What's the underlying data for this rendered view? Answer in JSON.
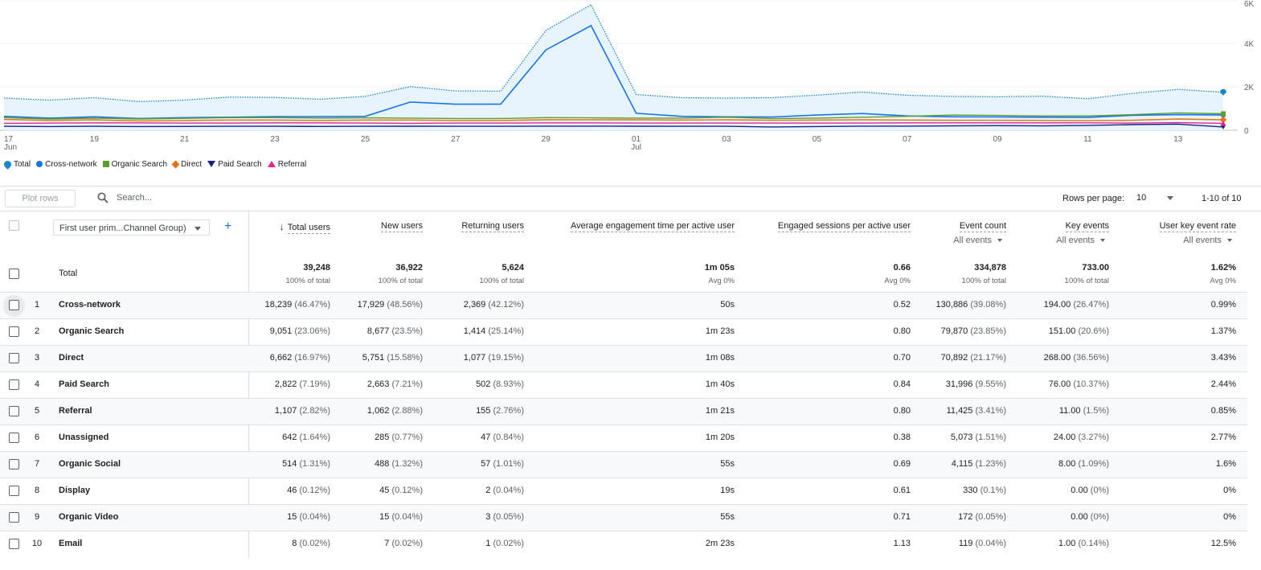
{
  "chart_data": {
    "type": "line",
    "x": [
      "17 Jun",
      "18 Jun",
      "19 Jun",
      "20 Jun",
      "21 Jun",
      "22 Jun",
      "23 Jun",
      "24 Jun",
      "25 Jun",
      "26 Jun",
      "27 Jun",
      "28 Jun",
      "29 Jun",
      "30 Jun",
      "01 Jul",
      "02 Jul",
      "03 Jul",
      "04 Jul",
      "05 Jul",
      "06 Jul",
      "07 Jul",
      "08 Jul",
      "09 Jul",
      "10 Jul",
      "11 Jul",
      "12 Jul",
      "13 Jul",
      "14 Jul"
    ],
    "xticks": [
      {
        "i": 0,
        "top": "17",
        "bottom": "Jun"
      },
      {
        "i": 2,
        "top": "19",
        "bottom": ""
      },
      {
        "i": 4,
        "top": "21",
        "bottom": ""
      },
      {
        "i": 6,
        "top": "23",
        "bottom": ""
      },
      {
        "i": 8,
        "top": "25",
        "bottom": ""
      },
      {
        "i": 10,
        "top": "27",
        "bottom": ""
      },
      {
        "i": 12,
        "top": "29",
        "bottom": ""
      },
      {
        "i": 14,
        "top": "01",
        "bottom": "Jul"
      },
      {
        "i": 16,
        "top": "03",
        "bottom": ""
      },
      {
        "i": 18,
        "top": "05",
        "bottom": ""
      },
      {
        "i": 20,
        "top": "07",
        "bottom": ""
      },
      {
        "i": 22,
        "top": "09",
        "bottom": ""
      },
      {
        "i": 24,
        "top": "11",
        "bottom": ""
      },
      {
        "i": 26,
        "top": "13",
        "bottom": ""
      }
    ],
    "yticks": [
      {
        "value": 0,
        "label": "0"
      },
      {
        "value": 2000,
        "label": "2K"
      },
      {
        "value": 4000,
        "label": "4K"
      },
      {
        "value": 6000,
        "label": "6K"
      }
    ],
    "ylim": [
      0,
      6000
    ],
    "grid": true,
    "legend_position": "bottom-left",
    "series": [
      {
        "name": "Total",
        "color": "#1a86c7",
        "style": "dotted-area",
        "values": [
          1480,
          1390,
          1500,
          1320,
          1390,
          1530,
          1510,
          1430,
          1560,
          2010,
          1810,
          1800,
          4600,
          5780,
          1650,
          1500,
          1480,
          1500,
          1620,
          1760,
          1610,
          1560,
          1540,
          1570,
          1450,
          1700,
          1880,
          1750
        ]
      },
      {
        "name": "Cross-network",
        "color": "#1a73e8",
        "style": "line",
        "values": [
          640,
          560,
          620,
          540,
          580,
          600,
          630,
          630,
          640,
          1300,
          1200,
          1200,
          3700,
          4820,
          780,
          640,
          620,
          610,
          700,
          770,
          660,
          620,
          610,
          600,
          590,
          690,
          720,
          700
        ]
      },
      {
        "name": "Organic Search",
        "color": "#5a9e2f",
        "style": "line",
        "values": [
          580,
          520,
          560,
          520,
          550,
          580,
          580,
          560,
          570,
          560,
          540,
          540,
          580,
          570,
          560,
          560,
          600,
          540,
          560,
          600,
          640,
          700,
          680,
          660,
          660,
          720,
          800,
          760
        ]
      },
      {
        "name": "Direct",
        "color": "#e8710a",
        "style": "line",
        "values": [
          500,
          450,
          480,
          430,
          450,
          470,
          470,
          450,
          470,
          470,
          450,
          450,
          480,
          480,
          480,
          470,
          480,
          460,
          470,
          480,
          470,
          460,
          460,
          450,
          440,
          460,
          520,
          480
        ]
      },
      {
        "name": "Paid Search",
        "color": "#1a237e",
        "style": "line",
        "values": [
          180,
          170,
          180,
          170,
          175,
          180,
          180,
          175,
          180,
          185,
          180,
          180,
          190,
          190,
          185,
          180,
          180,
          150,
          170,
          190,
          190,
          200,
          210,
          200,
          220,
          260,
          280,
          150
        ]
      },
      {
        "name": "Referral",
        "color": "#e52592",
        "style": "line",
        "values": [
          320,
          330,
          340,
          340,
          330,
          330,
          340,
          340,
          330,
          320,
          330,
          330,
          340,
          340,
          330,
          330,
          330,
          330,
          330,
          330,
          340,
          340,
          340,
          340,
          340,
          330,
          350,
          320
        ]
      }
    ]
  },
  "toolbar": {
    "plot_rows_label": "Plot rows",
    "search_placeholder": "Search...",
    "rows_per_page_label": "Rows per page:",
    "rows_per_page_value": "10",
    "pagination": "1-10 of 10"
  },
  "table": {
    "dimension_select": "First user prim...Channel Group)",
    "add_dimension": "+",
    "columns": [
      {
        "label": "Total users",
        "sub": "",
        "sort": "↓",
        "right": 411
      },
      {
        "label": "New users",
        "sub": "",
        "sort": "",
        "right": 526
      },
      {
        "label": "Returning users",
        "sub": "",
        "sort": "",
        "right": 652
      },
      {
        "label": "Average engagement time per active user",
        "sub": "",
        "sort": "",
        "right": 914
      },
      {
        "label": "Engaged sessions per active user",
        "sub": "",
        "sort": "",
        "right": 1133
      },
      {
        "label": "Event count",
        "sub": "All events",
        "sort": "",
        "right": 1252
      },
      {
        "label": "Key events",
        "sub": "All events",
        "sort": "",
        "right": 1380
      },
      {
        "label": "User key event rate",
        "sub": "All events",
        "sort": "",
        "right": 1538
      }
    ],
    "total": {
      "label": "Total",
      "values": [
        "39,248",
        "36,922",
        "5,624",
        "1m 05s",
        "0.66",
        "334,878",
        "733.00",
        "1.62%"
      ],
      "subs": [
        "100% of total",
        "100% of total",
        "100% of total",
        "Avg 0%",
        "Avg 0%",
        "100% of total",
        "100% of total",
        "Avg 0%"
      ]
    },
    "rows": [
      {
        "n": "1",
        "name": "Cross-network",
        "cells": [
          [
            "18,239",
            "(46.47%)"
          ],
          [
            "17,929",
            "(48.56%)"
          ],
          [
            "2,369",
            "(42.12%)"
          ],
          [
            "50s",
            ""
          ],
          [
            "0.52",
            ""
          ],
          [
            "130,886",
            "(39.08%)"
          ],
          [
            "194.00",
            "(26.47%)"
          ],
          [
            "0.99%",
            ""
          ]
        ]
      },
      {
        "n": "2",
        "name": "Organic Search",
        "cells": [
          [
            "9,051",
            "(23.06%)"
          ],
          [
            "8,677",
            "(23.5%)"
          ],
          [
            "1,414",
            "(25.14%)"
          ],
          [
            "1m 23s",
            ""
          ],
          [
            "0.80",
            ""
          ],
          [
            "79,870",
            "(23.85%)"
          ],
          [
            "151.00",
            "(20.6%)"
          ],
          [
            "1.37%",
            ""
          ]
        ]
      },
      {
        "n": "3",
        "name": "Direct",
        "cells": [
          [
            "6,662",
            "(16.97%)"
          ],
          [
            "5,751",
            "(15.58%)"
          ],
          [
            "1,077",
            "(19.15%)"
          ],
          [
            "1m 08s",
            ""
          ],
          [
            "0.70",
            ""
          ],
          [
            "70,892",
            "(21.17%)"
          ],
          [
            "268.00",
            "(36.56%)"
          ],
          [
            "3.43%",
            ""
          ]
        ]
      },
      {
        "n": "4",
        "name": "Paid Search",
        "cells": [
          [
            "2,822",
            "(7.19%)"
          ],
          [
            "2,663",
            "(7.21%)"
          ],
          [
            "502",
            "(8.93%)"
          ],
          [
            "1m 40s",
            ""
          ],
          [
            "0.84",
            ""
          ],
          [
            "31,996",
            "(9.55%)"
          ],
          [
            "76.00",
            "(10.37%)"
          ],
          [
            "2.44%",
            ""
          ]
        ]
      },
      {
        "n": "5",
        "name": "Referral",
        "cells": [
          [
            "1,107",
            "(2.82%)"
          ],
          [
            "1,062",
            "(2.88%)"
          ],
          [
            "155",
            "(2.76%)"
          ],
          [
            "1m 21s",
            ""
          ],
          [
            "0.80",
            ""
          ],
          [
            "11,425",
            "(3.41%)"
          ],
          [
            "11.00",
            "(1.5%)"
          ],
          [
            "0.85%",
            ""
          ]
        ]
      },
      {
        "n": "6",
        "name": "Unassigned",
        "cells": [
          [
            "642",
            "(1.64%)"
          ],
          [
            "285",
            "(0.77%)"
          ],
          [
            "47",
            "(0.84%)"
          ],
          [
            "1m 20s",
            ""
          ],
          [
            "0.38",
            ""
          ],
          [
            "5,073",
            "(1.51%)"
          ],
          [
            "24.00",
            "(3.27%)"
          ],
          [
            "2.77%",
            ""
          ]
        ]
      },
      {
        "n": "7",
        "name": "Organic Social",
        "cells": [
          [
            "514",
            "(1.31%)"
          ],
          [
            "488",
            "(1.32%)"
          ],
          [
            "57",
            "(1.01%)"
          ],
          [
            "55s",
            ""
          ],
          [
            "0.69",
            ""
          ],
          [
            "4,115",
            "(1.23%)"
          ],
          [
            "8.00",
            "(1.09%)"
          ],
          [
            "1.6%",
            ""
          ]
        ]
      },
      {
        "n": "8",
        "name": "Display",
        "cells": [
          [
            "46",
            "(0.12%)"
          ],
          [
            "45",
            "(0.12%)"
          ],
          [
            "2",
            "(0.04%)"
          ],
          [
            "19s",
            ""
          ],
          [
            "0.61",
            ""
          ],
          [
            "330",
            "(0.1%)"
          ],
          [
            "0.00",
            "(0%)"
          ],
          [
            "0%",
            ""
          ]
        ]
      },
      {
        "n": "9",
        "name": "Organic Video",
        "cells": [
          [
            "15",
            "(0.04%)"
          ],
          [
            "15",
            "(0.04%)"
          ],
          [
            "3",
            "(0.05%)"
          ],
          [
            "55s",
            ""
          ],
          [
            "0.71",
            ""
          ],
          [
            "172",
            "(0.05%)"
          ],
          [
            "0.00",
            "(0%)"
          ],
          [
            "0%",
            ""
          ]
        ]
      },
      {
        "n": "10",
        "name": "Email",
        "cells": [
          [
            "8",
            "(0.02%)"
          ],
          [
            "7",
            "(0.02%)"
          ],
          [
            "1",
            "(0.02%)"
          ],
          [
            "2m 23s",
            ""
          ],
          [
            "1.13",
            ""
          ],
          [
            "119",
            "(0.04%)"
          ],
          [
            "1.00",
            "(0.14%)"
          ],
          [
            "12.5%",
            ""
          ]
        ]
      }
    ]
  }
}
